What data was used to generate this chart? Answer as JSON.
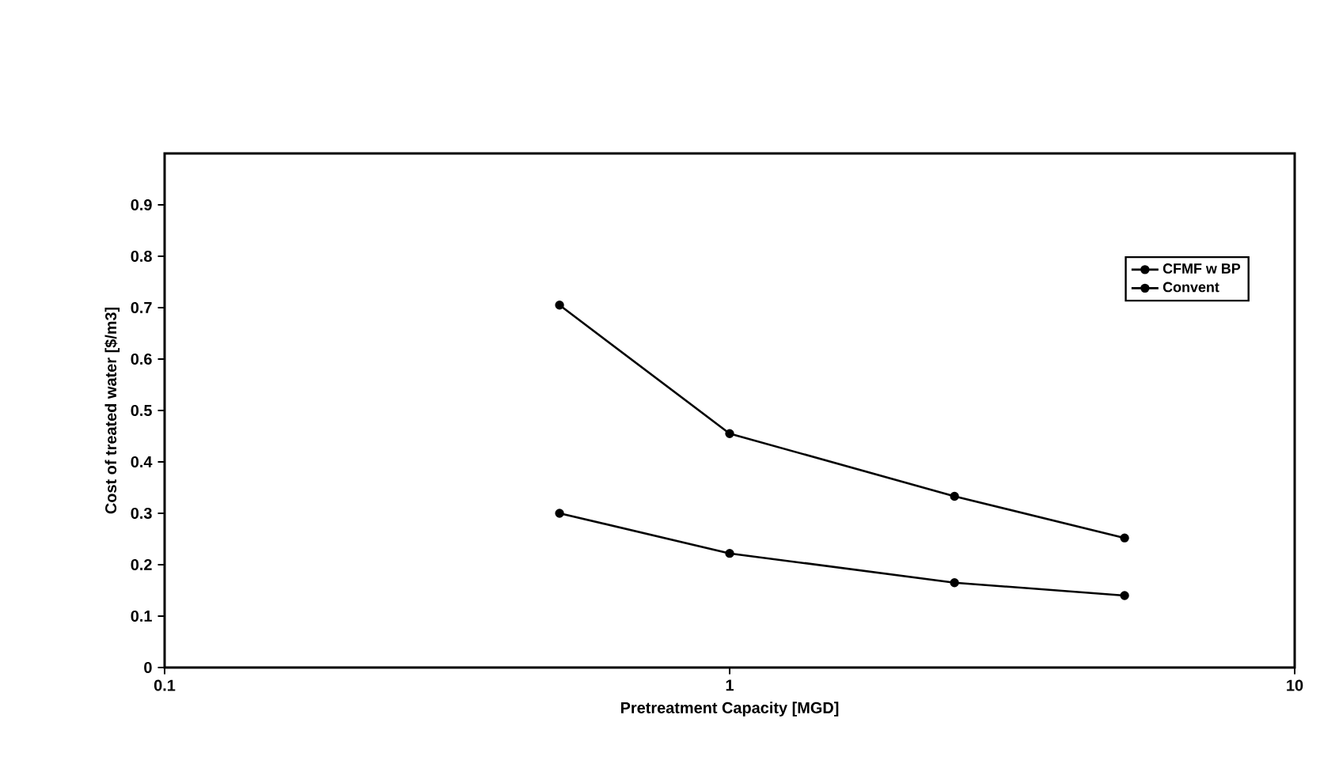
{
  "chart_data": {
    "type": "line",
    "xlabel": "Pretreatment Capacity [MGD]",
    "ylabel": "Cost of treated water [$/m3]",
    "log": "x",
    "xlim": [
      0.1,
      10
    ],
    "xticks": [
      0.1,
      1,
      10
    ],
    "ylim": [
      0,
      1
    ],
    "yticks": [
      0,
      0.1,
      0.2,
      0.3,
      0.4,
      0.5,
      0.6,
      0.7,
      0.8,
      0.9
    ],
    "x": [
      0.5,
      1,
      2.5,
      5
    ],
    "marker": "circle",
    "line_style": "solid",
    "grid": false,
    "legend": "top right",
    "series": [
      {
        "name": "CFMF w BP",
        "color": "#000000",
        "values": [
          0.3,
          0.222,
          0.165,
          0.14
        ]
      },
      {
        "name": "Convent",
        "color": "#000000",
        "values": [
          0.705,
          0.455,
          0.333,
          0.252
        ]
      }
    ]
  }
}
